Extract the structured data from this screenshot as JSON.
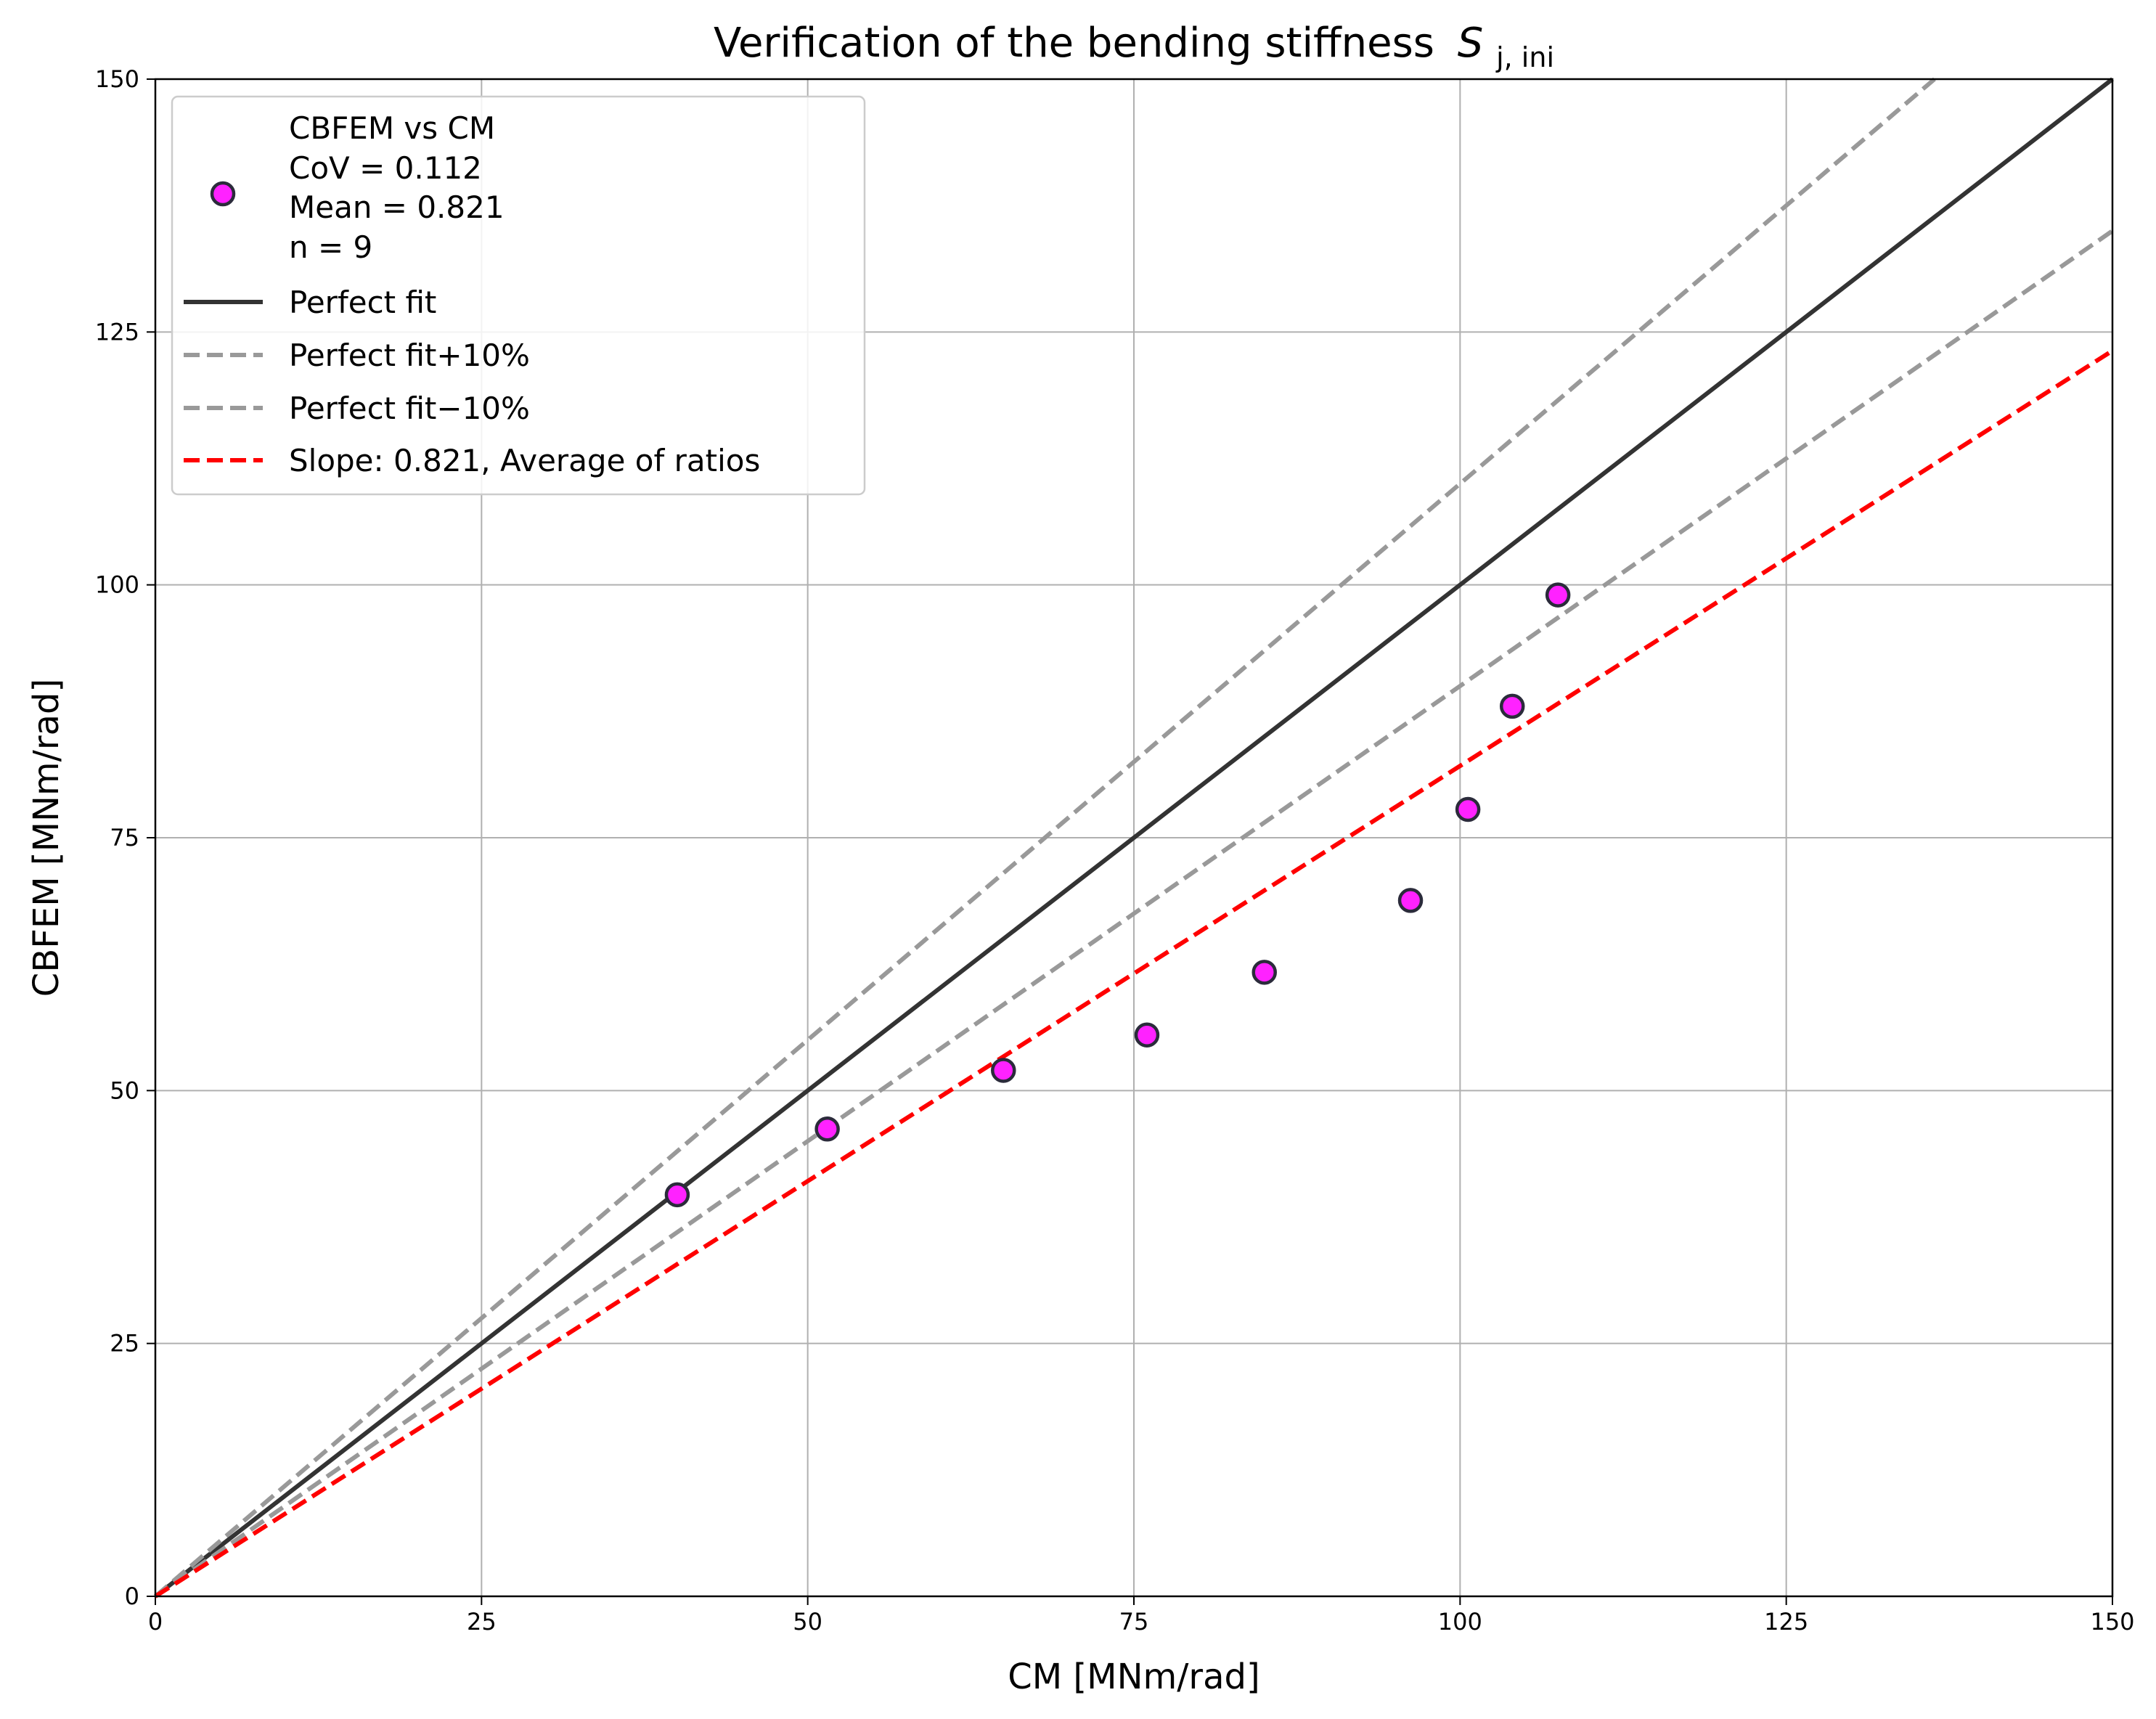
{
  "chart_data": {
    "type": "scatter",
    "title": "Verification of the bending stiffness",
    "title_symbol": "S",
    "title_subscript": "j, ini",
    "xlabel": "CM [MNm/rad]",
    "ylabel": "CBFEM [MNm/rad]",
    "xlim": [
      0,
      150
    ],
    "ylim": [
      0,
      150
    ],
    "xticks": [
      0,
      25,
      50,
      75,
      100,
      125,
      150
    ],
    "yticks": [
      0,
      25,
      50,
      75,
      100,
      125,
      150
    ],
    "grid": true,
    "legend_position": "top-left",
    "scatter": {
      "name": "CBFEM vs CM",
      "legend_lines": [
        "CBFEM vs CM",
        "CoV = 0.112",
        "Mean = 0.821",
        "n = 9"
      ],
      "color": "#ff22ff",
      "edge_color": "#2b2b3b",
      "points": [
        {
          "x": 40.0,
          "y": 39.7
        },
        {
          "x": 51.5,
          "y": 46.2
        },
        {
          "x": 65.0,
          "y": 52.0
        },
        {
          "x": 76.0,
          "y": 55.5
        },
        {
          "x": 85.0,
          "y": 61.7
        },
        {
          "x": 96.2,
          "y": 68.8
        },
        {
          "x": 100.6,
          "y": 77.8
        },
        {
          "x": 104.0,
          "y": 88.0
        },
        {
          "x": 107.5,
          "y": 99.0
        }
      ]
    },
    "lines": [
      {
        "name": "Perfect fit",
        "slope": 1.0,
        "color": "#333333",
        "dash": "solid"
      },
      {
        "name": "Perfect fit+10%",
        "slope": 1.1,
        "color": "#999999",
        "dash": "dashed"
      },
      {
        "name": "Perfect fit−10%",
        "slope": 0.9,
        "color": "#999999",
        "dash": "dashed"
      },
      {
        "name": "Slope: 0.821, Average of ratios",
        "slope": 0.821,
        "color": "#ff0000",
        "dash": "dashed"
      }
    ]
  }
}
